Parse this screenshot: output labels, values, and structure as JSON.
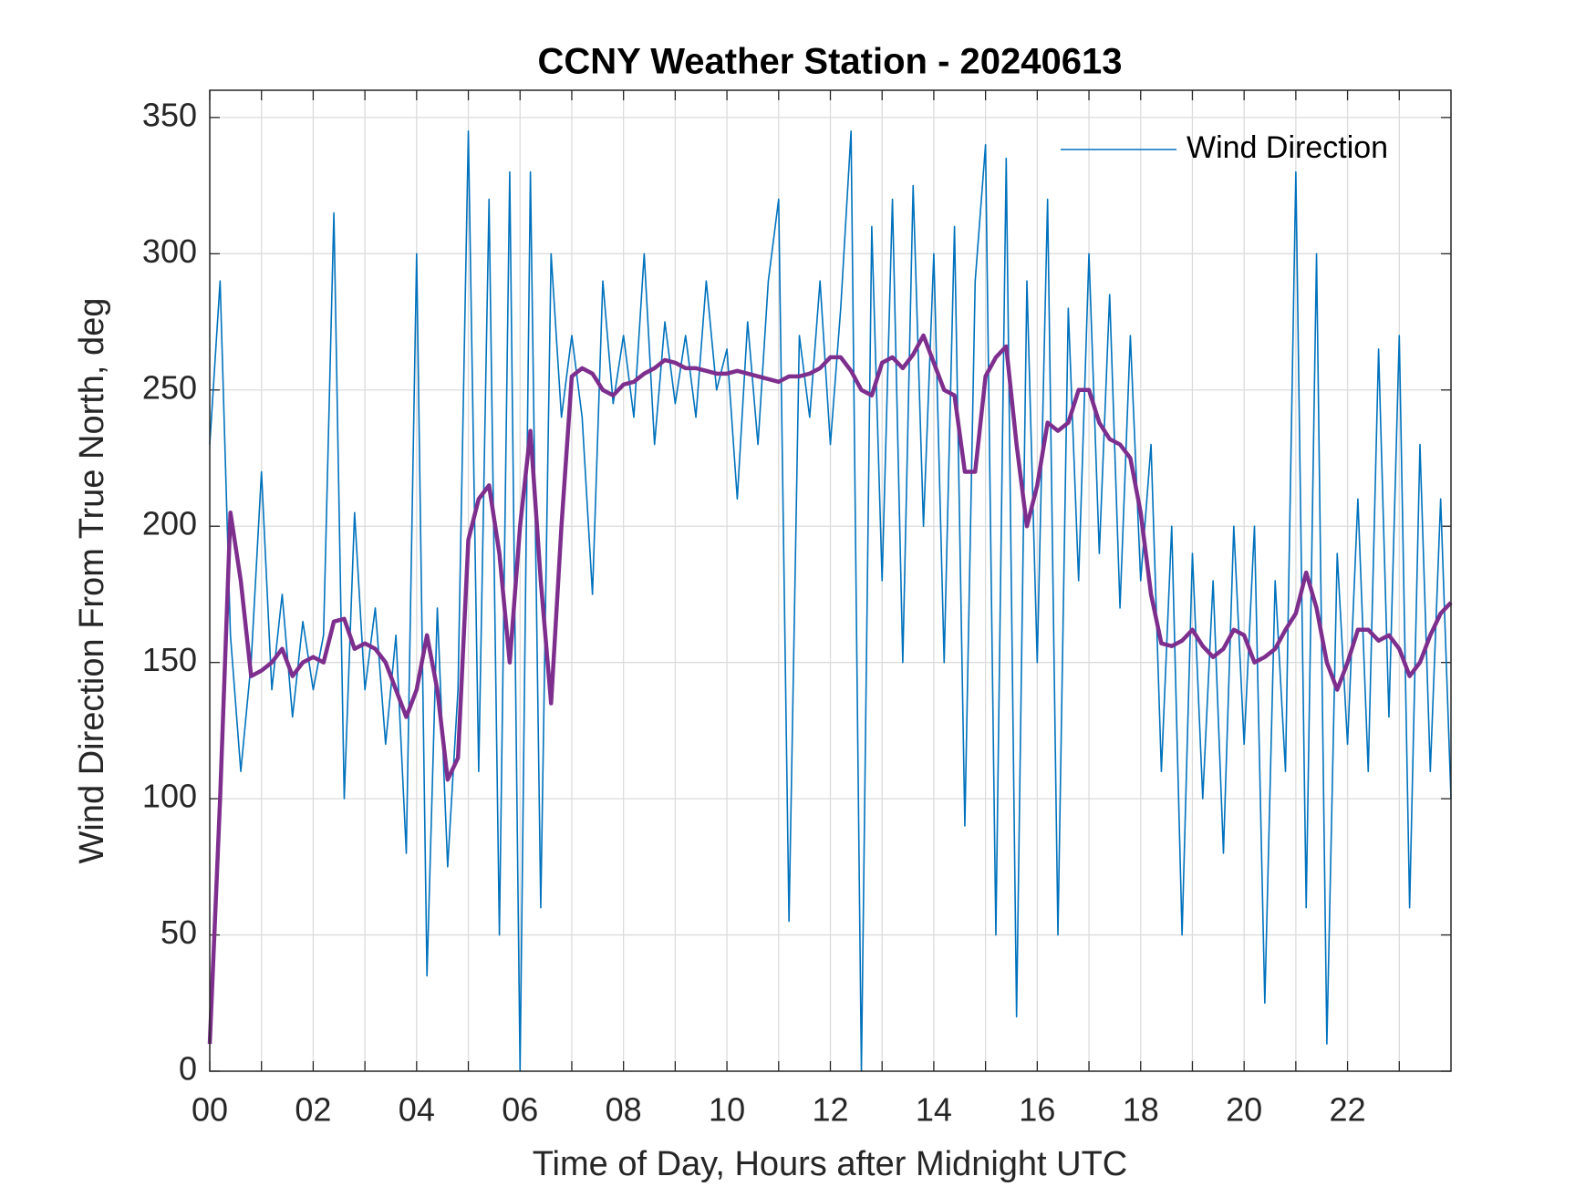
{
  "chart_data": {
    "type": "line",
    "title": "CCNY Weather Station - 20240613",
    "xlabel": "Time of Day, Hours after Midnight UTC",
    "ylabel": "Wind Direction From True North, deg",
    "x": [
      0,
      0.2,
      0.4,
      0.6,
      0.8,
      1,
      1.2,
      1.4,
      1.6,
      1.8,
      2,
      2.2,
      2.4,
      2.6,
      2.8,
      3,
      3.2,
      3.4,
      3.6,
      3.8,
      4,
      4.2,
      4.4,
      4.6,
      4.8,
      5,
      5.2,
      5.4,
      5.6,
      5.8,
      6,
      6.2,
      6.4,
      6.6,
      6.8,
      7,
      7.2,
      7.4,
      7.6,
      7.8,
      8,
      8.2,
      8.4,
      8.6,
      8.8,
      9,
      9.2,
      9.4,
      9.6,
      9.8,
      10,
      10.2,
      10.4,
      10.6,
      10.8,
      11,
      11.2,
      11.4,
      11.6,
      11.8,
      12,
      12.2,
      12.4,
      12.6,
      12.8,
      13,
      13.2,
      13.4,
      13.6,
      13.8,
      14,
      14.2,
      14.4,
      14.6,
      14.8,
      15,
      15.2,
      15.4,
      15.6,
      15.8,
      16,
      16.2,
      16.4,
      16.6,
      16.8,
      17,
      17.2,
      17.4,
      17.6,
      17.8,
      18,
      18.2,
      18.4,
      18.6,
      18.8,
      19,
      19.2,
      19.4,
      19.6,
      19.8,
      20,
      20.2,
      20.4,
      20.6,
      20.8,
      21,
      21.2,
      21.4,
      21.6,
      21.8,
      22,
      22.2,
      22.4,
      22.6,
      22.8,
      23,
      23.2,
      23.4,
      23.6,
      23.8,
      24
    ],
    "series": [
      {
        "name": "Wind Direction",
        "color": "#0072bd",
        "width": 1.6,
        "values": [
          230,
          290,
          160,
          110,
          150,
          220,
          140,
          175,
          130,
          165,
          140,
          160,
          315,
          100,
          205,
          140,
          170,
          120,
          160,
          80,
          300,
          35,
          170,
          75,
          140,
          345,
          110,
          320,
          50,
          330,
          0,
          330,
          60,
          300,
          240,
          270,
          240,
          175,
          290,
          245,
          270,
          240,
          300,
          230,
          275,
          245,
          270,
          240,
          290,
          250,
          265,
          210,
          275,
          230,
          290,
          320,
          55,
          270,
          240,
          290,
          230,
          280,
          345,
          0,
          310,
          180,
          320,
          150,
          325,
          200,
          300,
          150,
          310,
          90,
          290,
          340,
          50,
          335,
          20,
          290,
          150,
          320,
          50,
          280,
          180,
          300,
          190,
          285,
          170,
          270,
          180,
          230,
          110,
          200,
          50,
          190,
          100,
          180,
          80,
          200,
          120,
          200,
          25,
          180,
          110,
          330,
          60,
          300,
          10,
          190,
          120,
          210,
          110,
          265,
          130,
          270,
          60,
          230,
          110,
          210,
          100
        ]
      },
      {
        "color": "#7e2f8e",
        "width": 4.5,
        "values": [
          10,
          100,
          205,
          180,
          145,
          147,
          150,
          155,
          145,
          150,
          152,
          150,
          165,
          166,
          155,
          157,
          155,
          150,
          140,
          130,
          140,
          160,
          140,
          107,
          115,
          195,
          210,
          215,
          190,
          150,
          200,
          235,
          180,
          135,
          200,
          255,
          258,
          256,
          250,
          248,
          252,
          253,
          256,
          258,
          261,
          260,
          258,
          258,
          257,
          256,
          256,
          257,
          256,
          255,
          254,
          253,
          255,
          255,
          256,
          258,
          262,
          262,
          257,
          250,
          248,
          260,
          262,
          258,
          263,
          270,
          260,
          250,
          248,
          220,
          220,
          255,
          262,
          266,
          230,
          200,
          215,
          238,
          235,
          238,
          250,
          250,
          238,
          232,
          230,
          225,
          205,
          175,
          157,
          156,
          158,
          162,
          156,
          152,
          155,
          162,
          160,
          150,
          152,
          155,
          162,
          168,
          183,
          170,
          150,
          140,
          150,
          162,
          162,
          158,
          160,
          155,
          145,
          150,
          160,
          168,
          172
        ]
      }
    ],
    "xlim": [
      0,
      24
    ],
    "ylim": [
      0,
      360
    ],
    "xticks": [
      {
        "value": 0,
        "label": "00"
      },
      {
        "value": 2,
        "label": "02"
      },
      {
        "value": 4,
        "label": "04"
      },
      {
        "value": 6,
        "label": "06"
      },
      {
        "value": 8,
        "label": "08"
      },
      {
        "value": 10,
        "label": "10"
      },
      {
        "value": 12,
        "label": "12"
      },
      {
        "value": 14,
        "label": "14"
      },
      {
        "value": 16,
        "label": "16"
      },
      {
        "value": 18,
        "label": "18"
      },
      {
        "value": 20,
        "label": "20"
      },
      {
        "value": 22,
        "label": "22"
      }
    ],
    "xminorticks": [
      1,
      3,
      5,
      7,
      9,
      11,
      13,
      15,
      17,
      19,
      21,
      23
    ],
    "yticks": [
      0,
      50,
      100,
      150,
      200,
      250,
      300,
      350
    ],
    "grid": true,
    "legend": "upper right"
  }
}
